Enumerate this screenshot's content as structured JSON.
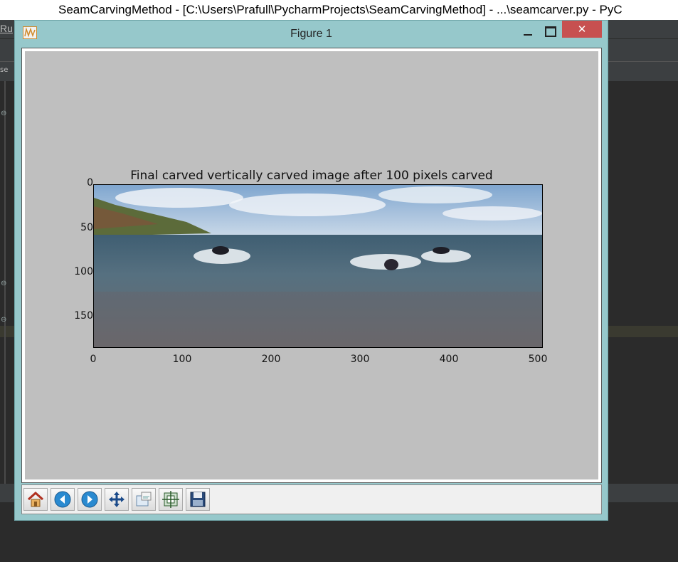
{
  "ide": {
    "window_title": "SeamCarvingMethod - [C:\\Users\\Prafull\\PycharmProjects\\SeamCarvingMethod] - ...\\seamcarver.py - PyC",
    "menu_run": "Ru",
    "tab_label": "se"
  },
  "figure": {
    "title": "Figure 1",
    "close_glyph": "✕"
  },
  "toolbar": {
    "buttons": [
      "home-icon",
      "back-arrow-icon",
      "forward-arrow-icon",
      "pan-icon",
      "zoom-icon",
      "configure-subplots-icon",
      "save-icon"
    ]
  },
  "chart_data": {
    "type": "image",
    "title": "Final carved vertically carved image after 100 pixels carved",
    "xlim": [
      0,
      506
    ],
    "ylim": [
      185,
      0
    ],
    "x_ticks": [
      0,
      100,
      200,
      300,
      400,
      500
    ],
    "y_ticks": [
      0,
      50,
      100,
      150
    ],
    "x_tick_labels": [
      "0",
      "100",
      "200",
      "300",
      "400",
      "500"
    ],
    "y_tick_labels": [
      "0",
      "50",
      "100",
      "150"
    ]
  }
}
